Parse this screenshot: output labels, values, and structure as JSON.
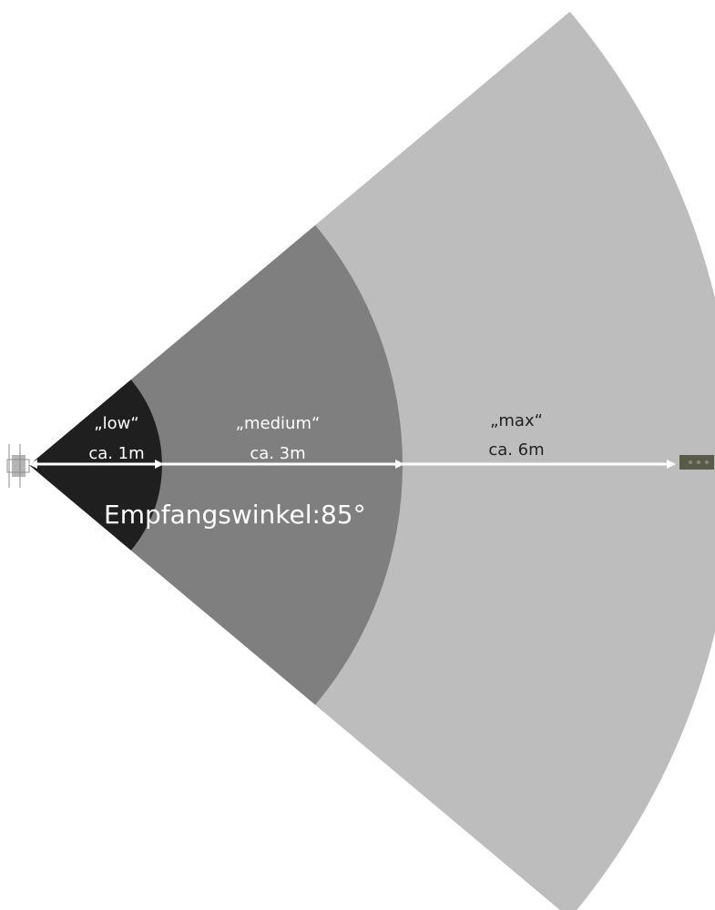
{
  "colors": {
    "background": "#ffffff",
    "zone_max": "#bdbdbd",
    "zone_medium": "#7f7f7f",
    "zone_low": "#1f1f1f",
    "arrow": "#ffffff",
    "label_on_dark": "#ffffff",
    "label_on_light": "#222222",
    "sender_device": "#b5b5b5",
    "receiver_device": "#5a5a4a"
  },
  "icons": {
    "sender": "ir-sender-device",
    "receiver": "ir-receiver-device"
  },
  "zones": [
    {
      "id": "low",
      "name": "„low“",
      "distance": "ca. 1m",
      "range_m": 1
    },
    {
      "id": "medium",
      "name": "„medium“",
      "distance": "ca. 3m",
      "range_m": 3
    },
    {
      "id": "max",
      "name": "„max“",
      "distance": "ca. 6m",
      "range_m": 6
    }
  ],
  "angle_label": "Empfangswinkel:85°",
  "angle_deg": 85
}
